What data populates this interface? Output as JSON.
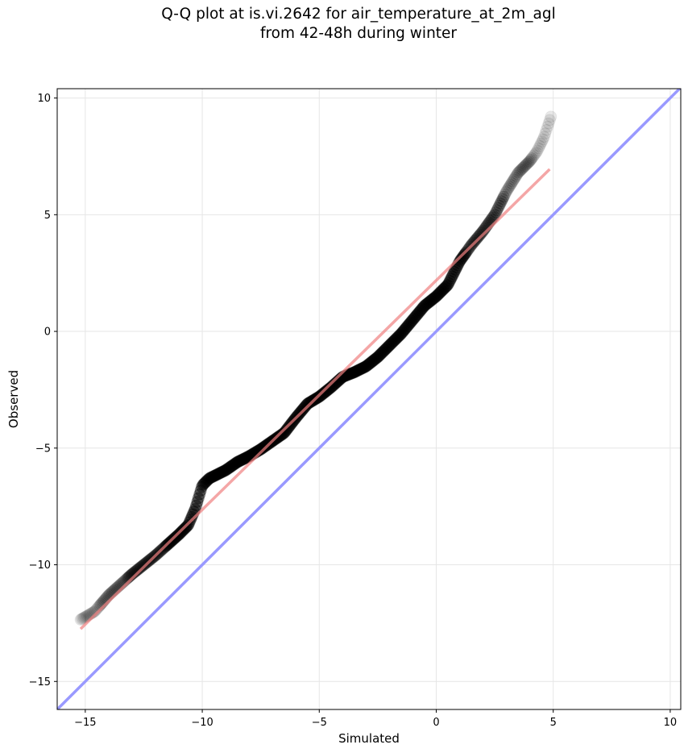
{
  "chart_data": {
    "type": "scatter",
    "title": "Q-Q plot at is.vi.2642 for air_temperature_at_2m_agl",
    "subtitle": "from 42-48h during winter",
    "xlabel": "Simulated",
    "ylabel": "Observed",
    "xlim": [
      -16.2,
      10.45
    ],
    "ylim": [
      -16.2,
      10.4
    ],
    "xticks": [
      -15,
      -10,
      -5,
      0,
      5,
      10
    ],
    "yticks": [
      -15,
      -10,
      -5,
      0,
      5,
      10
    ],
    "xtick_labels": [
      "−15",
      "−10",
      "−5",
      "0",
      "5",
      "10"
    ],
    "ytick_labels": [
      "−15",
      "−10",
      "−5",
      "0",
      "5",
      "10"
    ],
    "grid": true,
    "quantile_curve": [
      [
        -15.2,
        -12.35
      ],
      [
        -14.6,
        -12.0
      ],
      [
        -14.0,
        -11.3
      ],
      [
        -13.5,
        -10.85
      ],
      [
        -13.0,
        -10.4
      ],
      [
        -12.5,
        -10.0
      ],
      [
        -12.0,
        -9.6
      ],
      [
        -11.5,
        -9.15
      ],
      [
        -11.0,
        -8.7
      ],
      [
        -10.6,
        -8.3
      ],
      [
        -10.3,
        -7.6
      ],
      [
        -10.0,
        -6.6
      ],
      [
        -9.7,
        -6.3
      ],
      [
        -9.3,
        -6.1
      ],
      [
        -9.0,
        -5.95
      ],
      [
        -8.5,
        -5.6
      ],
      [
        -8.0,
        -5.35
      ],
      [
        -7.5,
        -5.05
      ],
      [
        -7.0,
        -4.7
      ],
      [
        -6.5,
        -4.35
      ],
      [
        -6.0,
        -3.7
      ],
      [
        -5.5,
        -3.1
      ],
      [
        -5.0,
        -2.8
      ],
      [
        -4.5,
        -2.4
      ],
      [
        -4.0,
        -1.95
      ],
      [
        -3.5,
        -1.75
      ],
      [
        -3.0,
        -1.5
      ],
      [
        -2.5,
        -1.1
      ],
      [
        -2.0,
        -0.6
      ],
      [
        -1.5,
        -0.1
      ],
      [
        -1.0,
        0.5
      ],
      [
        -0.5,
        1.1
      ],
      [
        0.0,
        1.5
      ],
      [
        0.5,
        2.0
      ],
      [
        1.0,
        3.0
      ],
      [
        1.5,
        3.7
      ],
      [
        2.0,
        4.3
      ],
      [
        2.5,
        5.0
      ],
      [
        3.0,
        6.0
      ],
      [
        3.5,
        6.8
      ],
      [
        4.0,
        7.3
      ],
      [
        4.3,
        7.7
      ],
      [
        4.6,
        8.3
      ],
      [
        4.9,
        9.2
      ]
    ],
    "fit_line": {
      "x": [
        -15.2,
        4.85
      ],
      "y": [
        -12.75,
        6.95
      ],
      "color": "#f08080"
    },
    "identity_line": {
      "x": [
        -16.2,
        10.45
      ],
      "y": [
        -16.2,
        10.45
      ],
      "color": "#9999ff"
    },
    "marker_color": "#000000"
  }
}
